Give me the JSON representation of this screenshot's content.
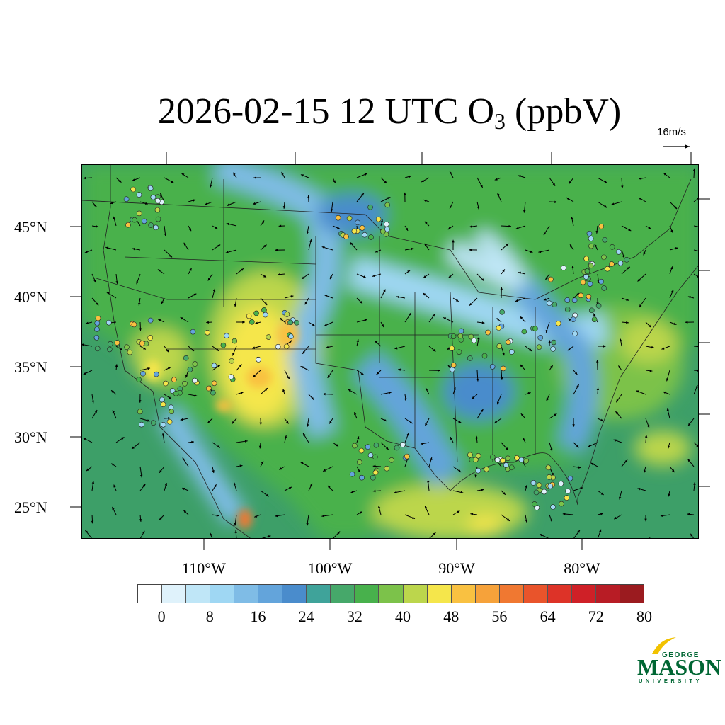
{
  "title": {
    "main": "2026-02-15 12 UTC O",
    "subscript": "3",
    "units": " (ppbV)"
  },
  "reference_vector": {
    "label": "16m/s"
  },
  "lat_labels": [
    "45°N",
    "40°N",
    "35°N",
    "30°N",
    "25°N"
  ],
  "lon_labels": [
    "110°W",
    "100°W",
    "90°W",
    "80°W"
  ],
  "colorbar": {
    "tick_labels": [
      "0",
      "8",
      "16",
      "24",
      "32",
      "40",
      "48",
      "56",
      "64",
      "72",
      "80"
    ],
    "colors": [
      "#ffffff",
      "#dff2fb",
      "#bfe6f7",
      "#9fd7f3",
      "#7fbce6",
      "#63a4db",
      "#4a8ccc",
      "#3fa39a",
      "#46a86a",
      "#48b14c",
      "#7cc24a",
      "#bcd64c",
      "#f5e64b",
      "#f9c141",
      "#f6a23a",
      "#f07831",
      "#e9542b",
      "#dd3328",
      "#cf2027",
      "#b81c25",
      "#9b1b1f"
    ]
  },
  "logo": {
    "line1": "GEORGE",
    "line2": "MASON",
    "line3": "UNIVERSITY"
  }
}
